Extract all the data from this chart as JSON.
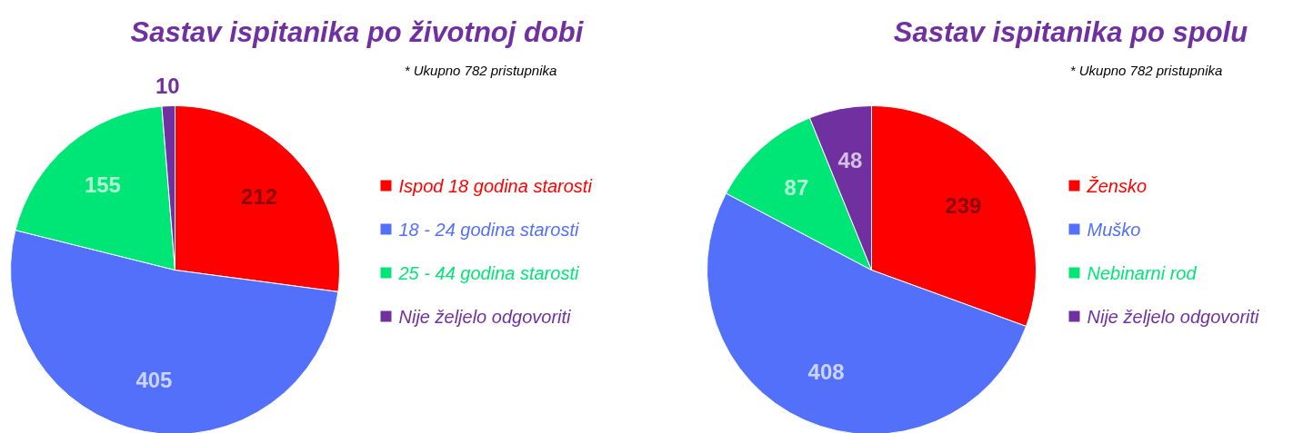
{
  "chart_data": [
    {
      "type": "pie",
      "title": "Sastav ispitanika po životnoj dobi",
      "annotations": [
        "* Ukupno 782 pristupnika"
      ],
      "categories": [
        "Ispod 18 godina starosti",
        "18 - 24 godina starosti",
        "25 - 44 godina starosti",
        "Nije željelo odgovoriti"
      ],
      "values": [
        212,
        405,
        155,
        10
      ],
      "colors": [
        "#ff0000",
        "#5370fb",
        "#00e676",
        "#7030a0"
      ],
      "data_labels": true,
      "legend": "right"
    },
    {
      "type": "pie",
      "title": "Sastav ispitanika po spolu",
      "annotations": [
        "* Ukupno 782 pristupnika"
      ],
      "categories": [
        "Žensko",
        "Muško",
        "Nebinarni rod",
        "Nije željelo odgovoriti"
      ],
      "values": [
        239,
        408,
        87,
        48
      ],
      "colors": [
        "#ff0000",
        "#5370fb",
        "#00e676",
        "#7030a0"
      ],
      "data_labels": true,
      "legend": "right"
    }
  ]
}
